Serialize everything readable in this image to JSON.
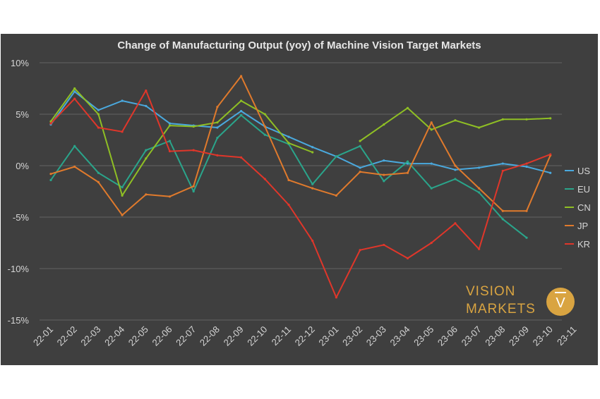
{
  "chart_data": {
    "type": "line",
    "title": "Change of Manufacturing Output (yoy) of Machine Vision Target Markets",
    "xlabel": "",
    "ylabel": "",
    "ylim": [
      -15,
      10
    ],
    "yticks": [
      10,
      5,
      0,
      -5,
      -10,
      -15
    ],
    "ytick_labels": [
      "10%",
      "5%",
      "0%",
      "-5%",
      "-10%",
      "-15%"
    ],
    "x": [
      "22-01",
      "22-02",
      "22-03",
      "22-04",
      "22-05",
      "22-06",
      "22-07",
      "22-08",
      "22-09",
      "22-10",
      "22-11",
      "22-12",
      "23-01",
      "23-02",
      "23-03",
      "23-04",
      "23-05",
      "23-06",
      "23-07",
      "23-08",
      "23-09",
      "23-10",
      "23-11"
    ],
    "grid": true,
    "legend_position": "right",
    "series": [
      {
        "name": "US",
        "color": "#4aa9de",
        "values": [
          4.0,
          7.2,
          5.4,
          6.3,
          5.8,
          4.1,
          3.9,
          3.7,
          5.3,
          3.8,
          2.8,
          1.8,
          0.9,
          -0.2,
          0.5,
          0.2,
          0.2,
          -0.4,
          -0.2,
          0.2,
          -0.1,
          -0.7,
          null
        ]
      },
      {
        "name": "EU",
        "color": "#2aa58b",
        "values": [
          -1.4,
          1.9,
          -0.7,
          -2.1,
          1.5,
          2.4,
          -2.5,
          2.7,
          4.9,
          3.0,
          2.1,
          -1.8,
          0.9,
          1.9,
          -1.5,
          0.4,
          -2.2,
          -1.3,
          -2.6,
          -5.2,
          -7.0,
          null,
          null
        ]
      },
      {
        "name": "CN",
        "color": "#8fbf24",
        "values": [
          4.3,
          7.5,
          5.0,
          -2.9,
          0.7,
          3.9,
          3.8,
          4.2,
          6.3,
          5.0,
          2.2,
          1.3,
          null,
          2.4,
          4.0,
          5.6,
          3.5,
          4.4,
          3.7,
          4.5,
          4.5,
          4.6,
          null
        ]
      },
      {
        "name": "JP",
        "color": "#e07a2c",
        "values": [
          -0.8,
          -0.1,
          -1.6,
          -4.8,
          -2.8,
          -3.0,
          -2.0,
          5.7,
          8.7,
          3.8,
          -1.4,
          -2.2,
          -2.9,
          -0.6,
          -0.9,
          -0.7,
          4.2,
          0.0,
          -2.2,
          -4.4,
          -4.4,
          1.0,
          null
        ]
      },
      {
        "name": "KR",
        "color": "#e0362a",
        "values": [
          4.1,
          6.5,
          3.7,
          3.3,
          7.3,
          1.4,
          1.5,
          1.0,
          0.8,
          -1.3,
          -3.8,
          -7.3,
          -12.8,
          -8.2,
          -7.7,
          -9.0,
          -7.5,
          -5.6,
          -8.1,
          -0.5,
          0.2,
          1.1,
          null
        ]
      }
    ]
  },
  "logo": {
    "line1": "VISION",
    "line2": "MARKETS",
    "badge": "V",
    "color": "#d9a441"
  }
}
